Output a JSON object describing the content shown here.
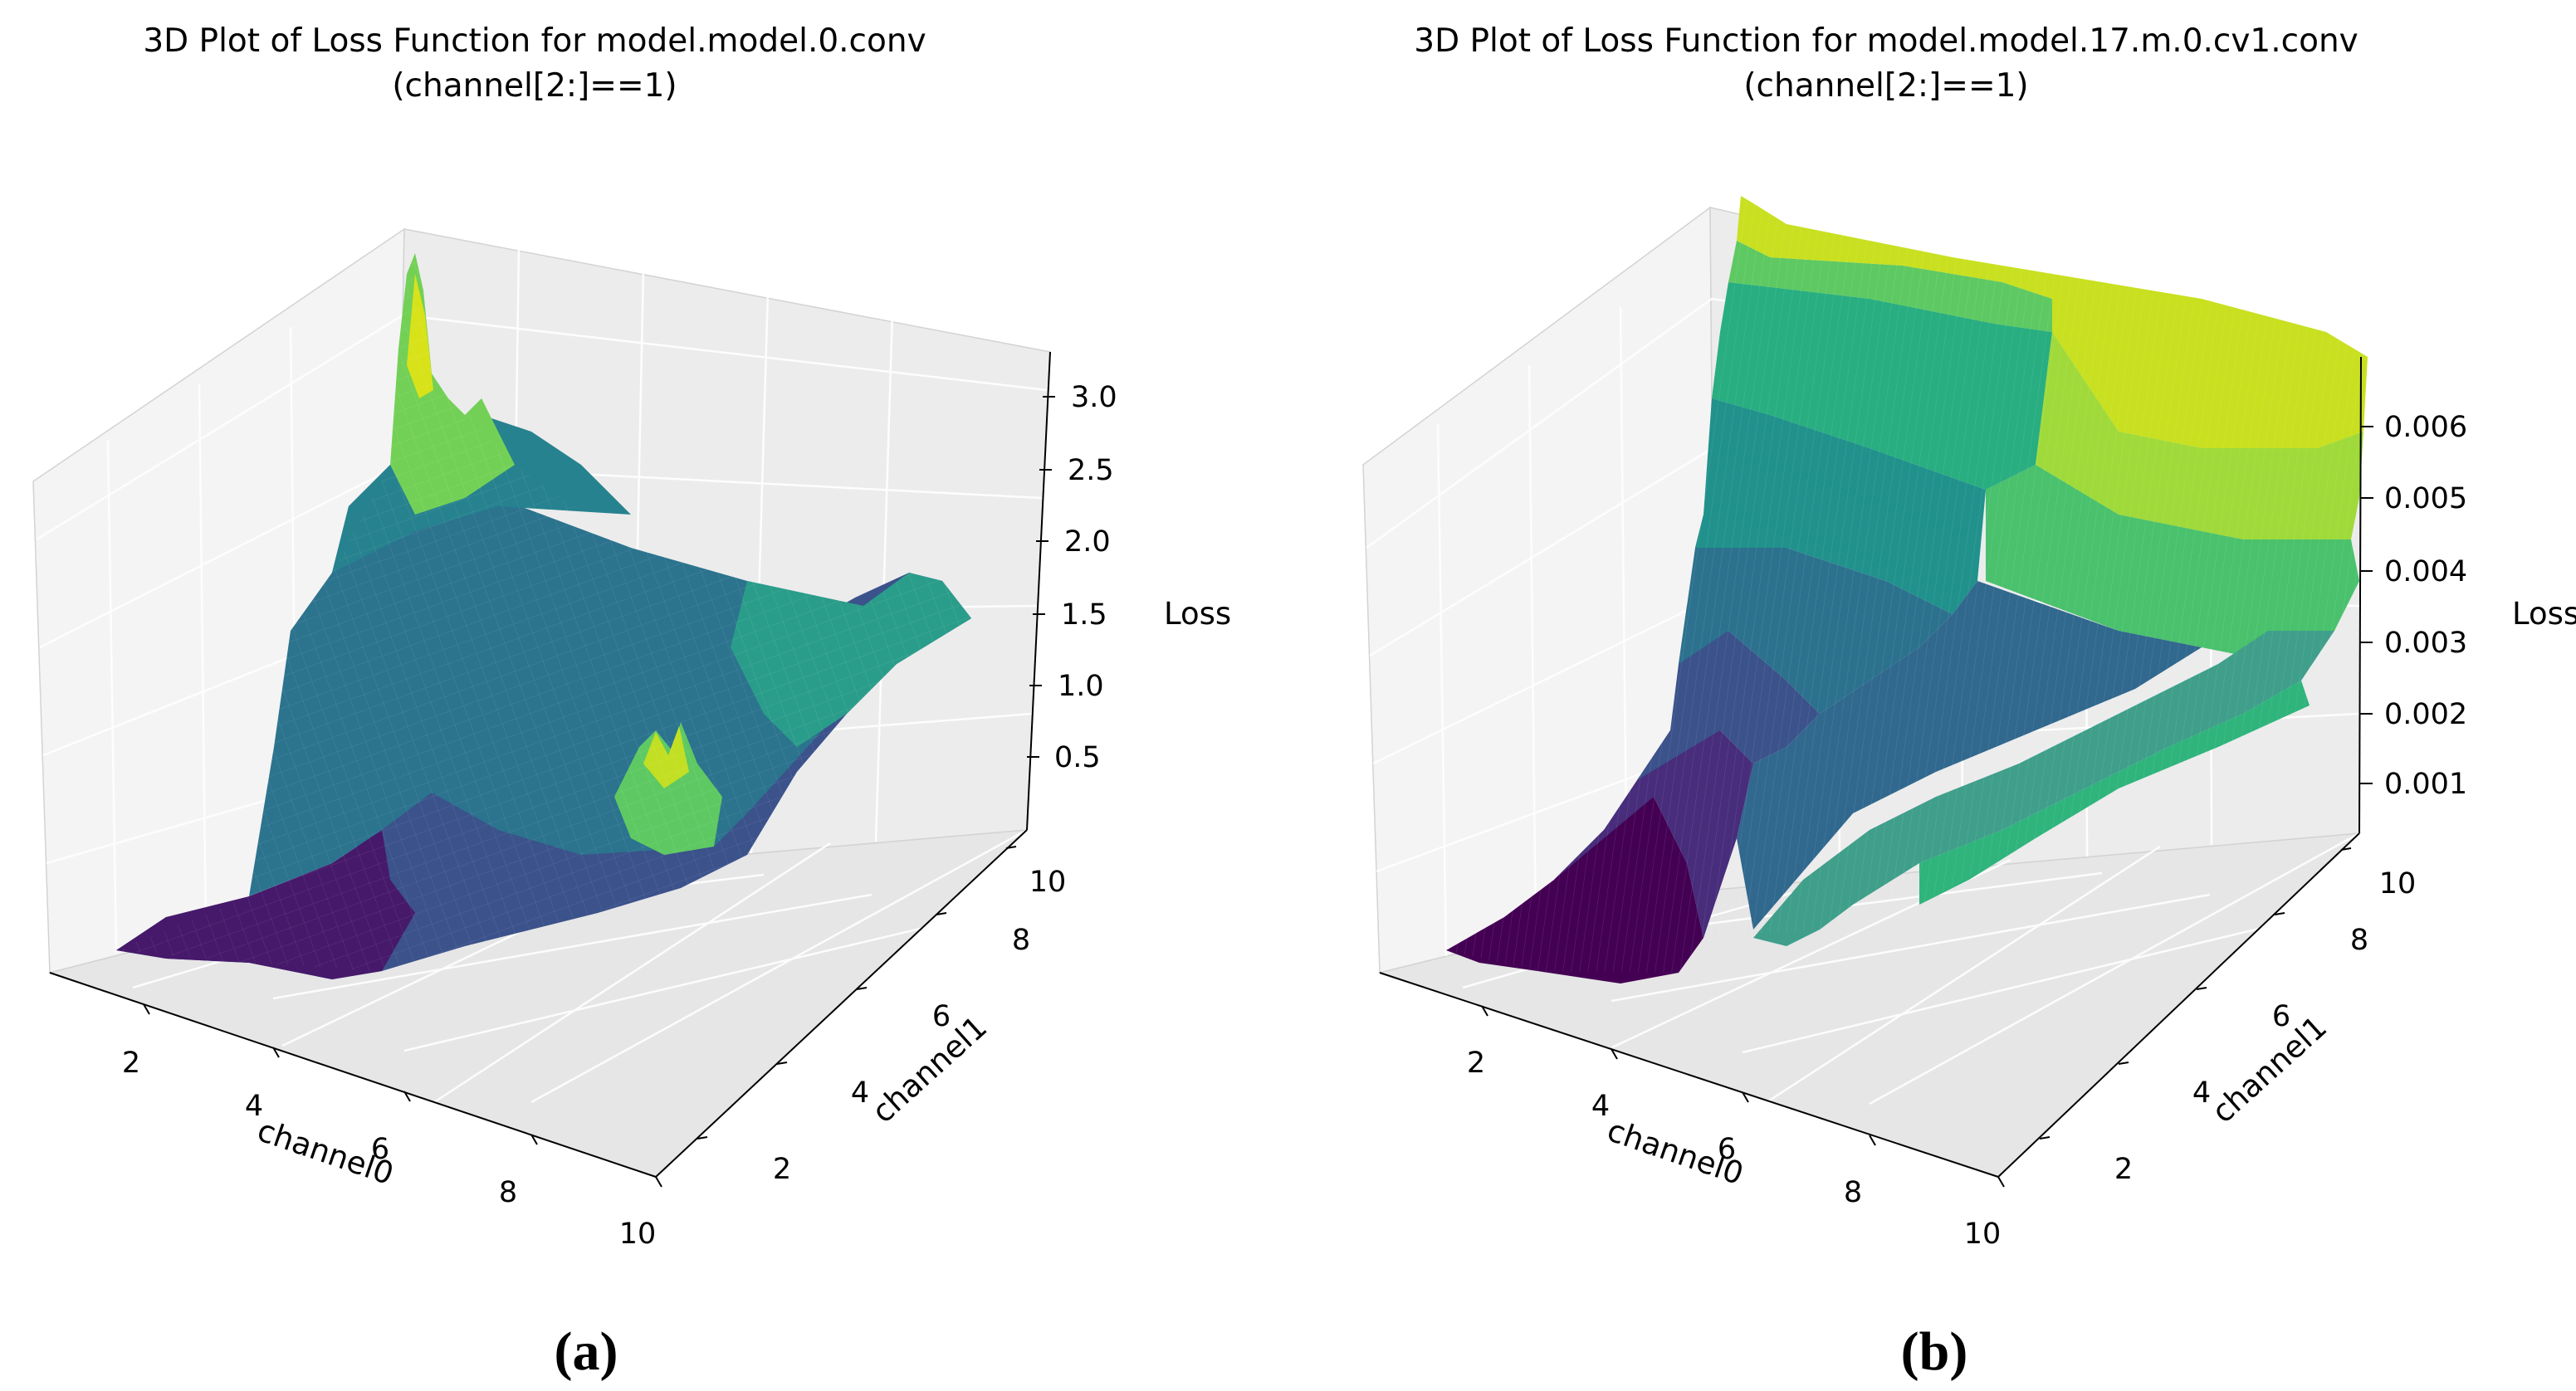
{
  "chart_data": [
    {
      "type": "surface3d",
      "panel": "a",
      "caption": "(a)",
      "title_line1": "3D Plot of Loss Function for model.model.0.conv",
      "title_line2": "(channel[2:]==1)",
      "xlabel": "channel0",
      "ylabel": "channel1",
      "zlabel": "Loss",
      "x_range": [
        1,
        10
      ],
      "y_range": [
        1,
        10
      ],
      "z_range": [
        0.2,
        3.2
      ],
      "x_ticks": [
        2,
        4,
        6,
        8,
        10
      ],
      "y_ticks": [
        2,
        4,
        6,
        8,
        10
      ],
      "z_ticks": [
        0.5,
        1.0,
        1.5,
        2.0,
        2.5,
        3.0
      ],
      "x_tick_labels": [
        "2",
        "4",
        "6",
        "8",
        "10"
      ],
      "y_tick_labels": [
        "2",
        "4",
        "6",
        "8",
        "10"
      ],
      "z_tick_labels": [
        "0.5",
        "1.0",
        "1.5",
        "2.0",
        "2.5",
        "3.0"
      ],
      "colormap": "viridis",
      "surface_description": "Low loss near channel0=1, channel1=1; loss rises with channel1; sharp peak of about 3.1 near channel0=1, channel1=9; secondary peaks of about 1.9 near channel0=6, channel1=3; moderate plateau of about 1.3 to 1.6 at high channel0 and high channel1.",
      "key_points": [
        {
          "channel0": 1,
          "channel1": 1,
          "loss": 0.2
        },
        {
          "channel0": 5,
          "channel1": 1,
          "loss": 0.3
        },
        {
          "channel0": 10,
          "channel1": 1,
          "loss": 0.8
        },
        {
          "channel0": 1,
          "channel1": 9,
          "loss": 3.1
        },
        {
          "channel0": 6,
          "channel1": 3,
          "loss": 1.9
        },
        {
          "channel0": 10,
          "channel1": 10,
          "loss": 1.5
        }
      ]
    },
    {
      "type": "surface3d",
      "panel": "b",
      "caption": "(b)",
      "title_line1": "3D Plot of Loss Function for model.model.17.m.0.cv1.conv",
      "title_line2": "(channel[2:]==1)",
      "xlabel": "channel0",
      "ylabel": "channel1",
      "zlabel": "Loss",
      "x_range": [
        1,
        10
      ],
      "y_range": [
        1,
        10
      ],
      "z_range": [
        0.0003,
        0.0068
      ],
      "x_ticks": [
        2,
        4,
        6,
        8,
        10
      ],
      "y_ticks": [
        2,
        4,
        6,
        8,
        10
      ],
      "z_ticks": [
        0.001,
        0.002,
        0.003,
        0.004,
        0.005,
        0.006
      ],
      "x_tick_labels": [
        "2",
        "4",
        "6",
        "8",
        "10"
      ],
      "y_tick_labels": [
        "2",
        "4",
        "6",
        "8",
        "10"
      ],
      "z_tick_labels": [
        "0.001",
        "0.002",
        "0.003",
        "0.004",
        "0.005",
        "0.006"
      ],
      "colormap": "viridis",
      "surface_description": "Loss increases in terraces along channel1, nearly constant along channel0, reaching about 0.0066 at channel1=10; a ridge near channel0=5 to 7 at low channel1.",
      "key_points": [
        {
          "channel0": 1,
          "channel1": 1,
          "loss": 0.0004
        },
        {
          "channel0": 10,
          "channel1": 1,
          "loss": 0.0012
        },
        {
          "channel0": 1,
          "channel1": 5,
          "loss": 0.0035
        },
        {
          "channel0": 1,
          "channel1": 10,
          "loss": 0.0066
        },
        {
          "channel0": 10,
          "channel1": 10,
          "loss": 0.0064
        }
      ]
    }
  ]
}
